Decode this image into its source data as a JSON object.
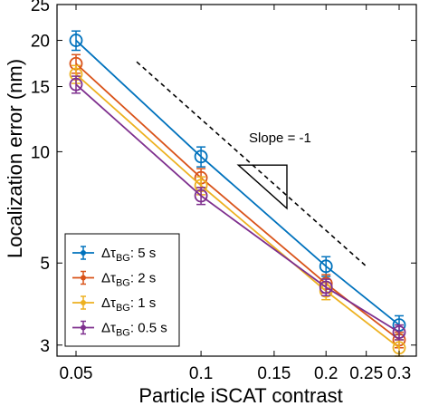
{
  "chart_data": {
    "type": "line",
    "xlabel": "Particle iSCAT contrast",
    "ylabel": "Localization error (nm)",
    "xscale": "log",
    "yscale": "log",
    "xlim": [
      0.045,
      0.33
    ],
    "ylim": [
      2.8,
      25
    ],
    "xticks": [
      0.05,
      0.1,
      0.15,
      0.2,
      0.25,
      0.3
    ],
    "xtick_labels": [
      "0.05",
      "0.1",
      "0.15",
      "0.2",
      "0.25",
      "0.3"
    ],
    "yticks": [
      3,
      5,
      10,
      15,
      20,
      25
    ],
    "ytick_labels": [
      "3",
      "5",
      "10",
      "15",
      "20",
      "25"
    ],
    "grid": false,
    "legend_position": "bottom-left",
    "x": [
      0.05,
      0.1,
      0.2,
      0.3
    ],
    "series": [
      {
        "name": "5 s",
        "legend_prefix": "Δτ",
        "legend_sub": "BG",
        "legend_suffix": ": 5 s",
        "color": "#0072BD",
        "values": [
          20.0,
          9.7,
          4.9,
          3.4
        ],
        "errors": [
          1.2,
          0.6,
          0.3,
          0.2
        ]
      },
      {
        "name": "2 s",
        "legend_prefix": "Δτ",
        "legend_sub": "BG",
        "legend_suffix": ": 2 s",
        "color": "#D95319",
        "values": [
          17.3,
          8.5,
          4.4,
          3.1
        ],
        "errors": [
          1.0,
          0.5,
          0.25,
          0.15
        ]
      },
      {
        "name": "1 s",
        "legend_prefix": "Δτ",
        "legend_sub": "BG",
        "legend_suffix": ": 1 s",
        "color": "#EDB120",
        "values": [
          16.2,
          8.1,
          4.2,
          2.95
        ],
        "errors": [
          0.9,
          0.45,
          0.22,
          0.15
        ]
      },
      {
        "name": "0.5 s",
        "legend_prefix": "Δτ",
        "legend_sub": "BG",
        "legend_suffix": ": 0.5 s",
        "color": "#7E2F8E",
        "values": [
          15.2,
          7.6,
          4.3,
          3.25
        ],
        "errors": [
          0.8,
          0.4,
          0.22,
          0.15
        ]
      }
    ],
    "reference_line": {
      "label": "Slope = -1",
      "x": [
        0.07,
        0.25
      ],
      "y": [
        17.5,
        4.9
      ],
      "style": "dashed",
      "color": "#000000"
    }
  }
}
